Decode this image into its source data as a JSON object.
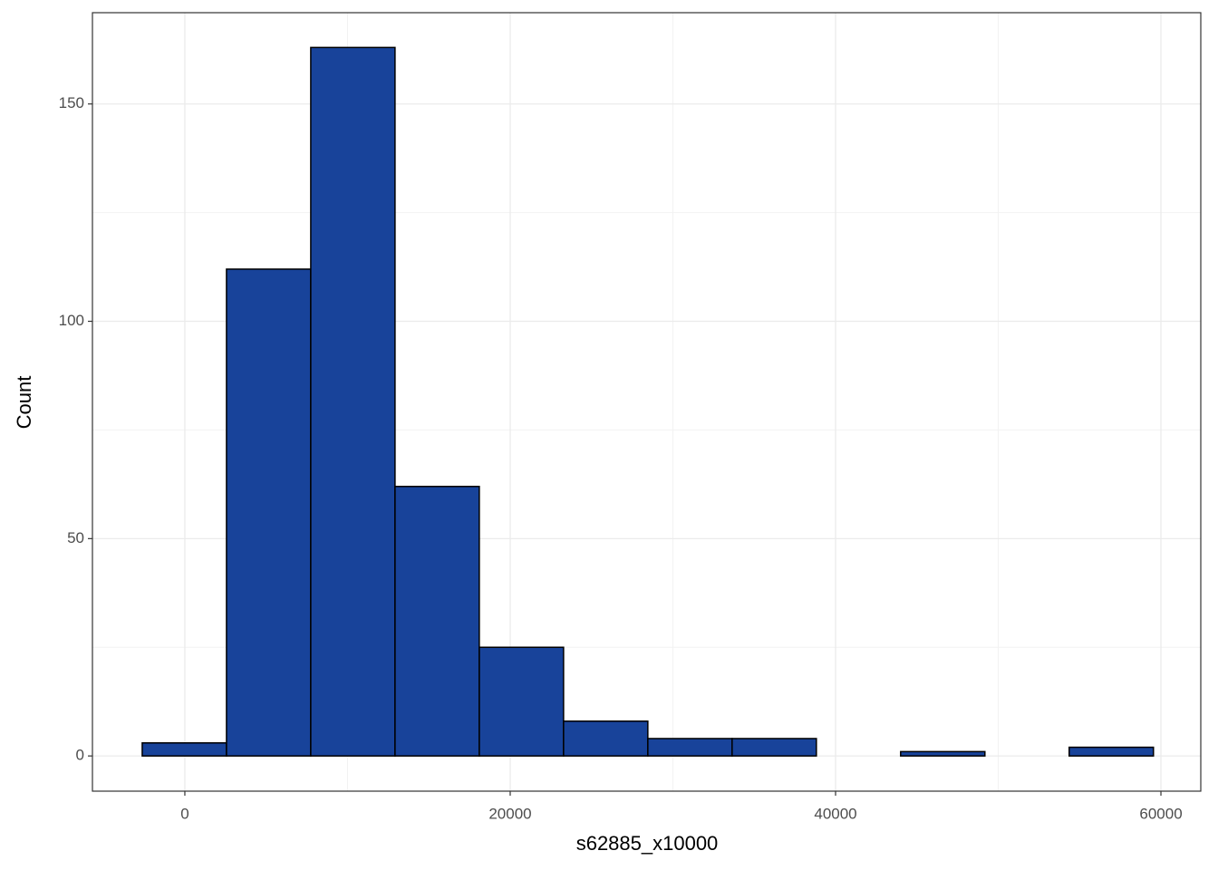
{
  "chart_data": {
    "type": "histogram",
    "x_label": "s62885_x10000",
    "y_label": "Count",
    "bins": [
      -2620,
      2560,
      7740,
      12920,
      18100,
      23280,
      28460,
      33640,
      38820,
      44000,
      49180,
      54360,
      59540
    ],
    "values": [
      3,
      112,
      163,
      62,
      25,
      8,
      4,
      4,
      0,
      1,
      0,
      2
    ],
    "color": "#18439a",
    "edge_color": "#000000",
    "xlim": [
      -5680,
      62450
    ],
    "xticks": [
      0,
      20000,
      40000,
      60000
    ],
    "ylim": [
      -8.1,
      171
    ],
    "yticks": [
      0,
      50,
      100,
      150
    ],
    "grid": true
  }
}
